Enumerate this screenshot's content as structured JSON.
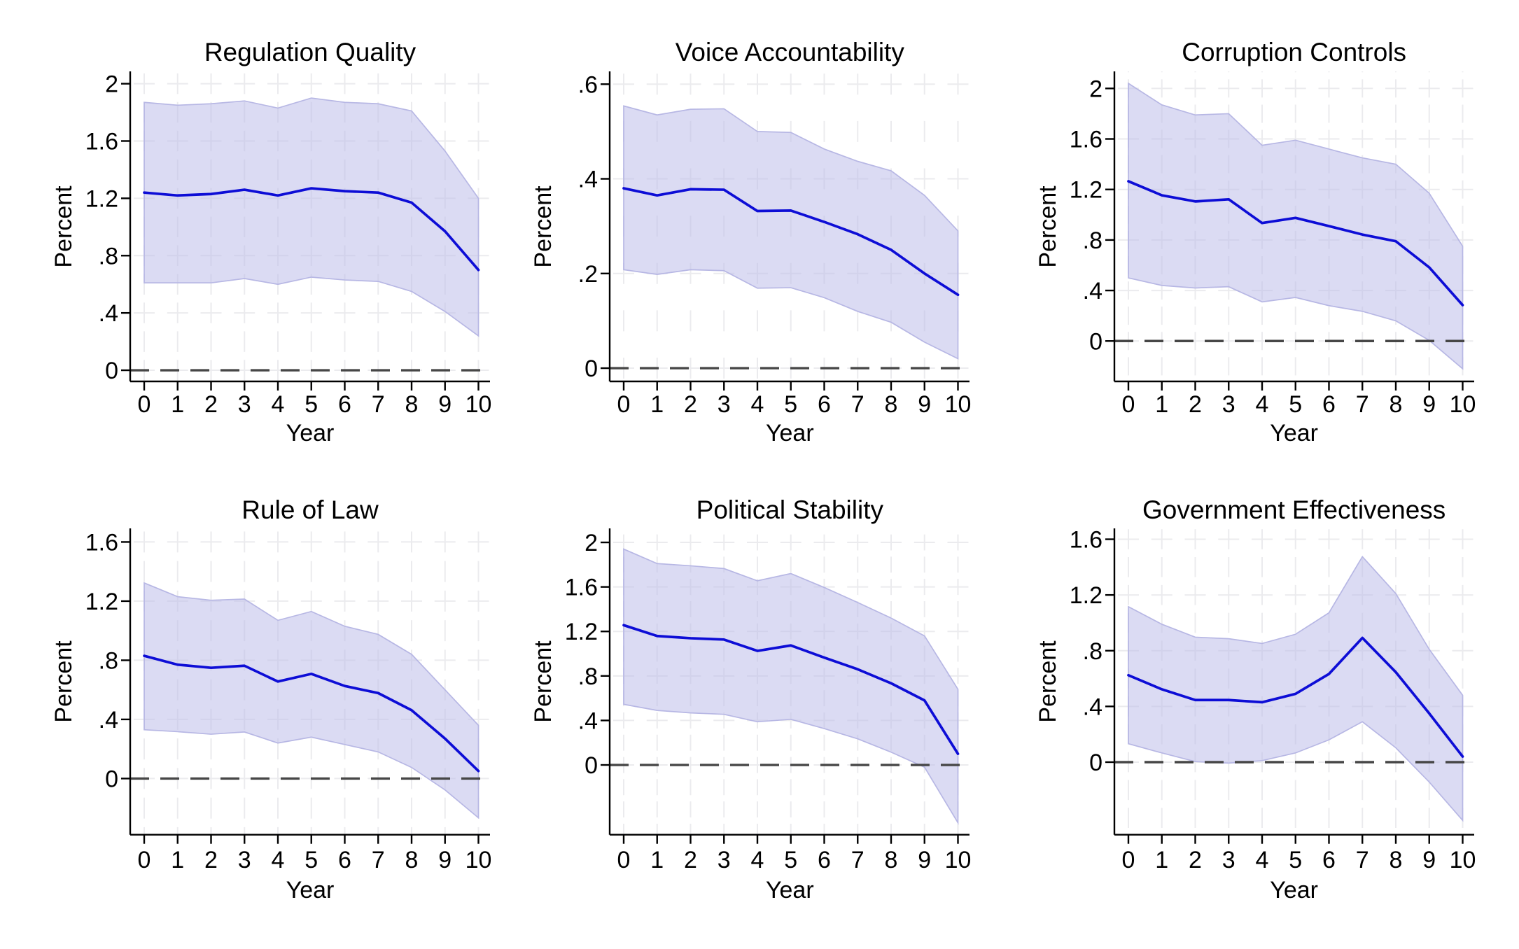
{
  "figure": {
    "background": "#ffffff",
    "layout": "2 rows x 3 columns of line charts with confidence bands"
  },
  "style": {
    "line_color": "#0d0dd6",
    "band_fill": "#bdbdea",
    "band_fill_opacity": 0.55,
    "band_edge": "#b7b7e4",
    "grid_color": "#ebebee",
    "zero_line_color": "#474747",
    "axis_color": "#000000"
  },
  "chart_data": [
    {
      "type": "line",
      "title": "Regulation Quality",
      "xlabel": "Year",
      "ylabel": "Percent",
      "x": [
        0,
        1,
        2,
        3,
        4,
        5,
        6,
        7,
        8,
        9,
        10
      ],
      "xtick_labels": [
        "0",
        "1",
        "2",
        "3",
        "4",
        "5",
        "6",
        "7",
        "8",
        "9",
        "10"
      ],
      "series": [
        {
          "name": "response",
          "values": [
            1.24,
            1.22,
            1.23,
            1.26,
            1.22,
            1.27,
            1.25,
            1.24,
            1.17,
            0.97,
            0.7
          ]
        },
        {
          "name": "ci_upper",
          "values": [
            1.87,
            1.85,
            1.86,
            1.88,
            1.83,
            1.9,
            1.87,
            1.86,
            1.81,
            1.53,
            1.2
          ]
        },
        {
          "name": "ci_lower",
          "values": [
            0.61,
            0.61,
            0.61,
            0.64,
            0.6,
            0.65,
            0.63,
            0.62,
            0.55,
            0.41,
            0.24
          ]
        }
      ],
      "yticks": [
        0,
        0.4,
        0.8,
        1.2,
        1.6,
        2
      ],
      "ytick_labels": [
        "0",
        ".4",
        ".8",
        "1.2",
        "1.6",
        "2"
      ],
      "ylim": [
        -0.078,
        2.086
      ],
      "zero_line": 0,
      "grid": true,
      "legend": "none"
    },
    {
      "type": "line",
      "title": "Voice Accountability",
      "xlabel": "Year",
      "ylabel": "Percent",
      "x": [
        0,
        1,
        2,
        3,
        4,
        5,
        6,
        7,
        8,
        9,
        10
      ],
      "xtick_labels": [
        "0",
        "1",
        "2",
        "3",
        "4",
        "5",
        "6",
        "7",
        "8",
        "9",
        "10"
      ],
      "series": [
        {
          "name": "response",
          "values": [
            0.38,
            0.365,
            0.378,
            0.377,
            0.332,
            0.333,
            0.309,
            0.283,
            0.25,
            0.2,
            0.155
          ]
        },
        {
          "name": "ci_upper",
          "values": [
            0.554,
            0.535,
            0.547,
            0.548,
            0.5,
            0.498,
            0.463,
            0.437,
            0.417,
            0.365,
            0.29
          ]
        },
        {
          "name": "ci_lower",
          "values": [
            0.208,
            0.198,
            0.208,
            0.206,
            0.169,
            0.17,
            0.149,
            0.12,
            0.097,
            0.055,
            0.02
          ]
        }
      ],
      "yticks": [
        0,
        0.2,
        0.4,
        0.6
      ],
      "ytick_labels": [
        "0",
        ".2",
        ".4",
        ".6"
      ],
      "ylim": [
        -0.028,
        0.627
      ],
      "zero_line": 0,
      "grid": true,
      "legend": "none"
    },
    {
      "type": "line",
      "title": "Corruption Controls",
      "xlabel": "Year",
      "ylabel": "Percent",
      "x": [
        0,
        1,
        2,
        3,
        4,
        5,
        6,
        7,
        8,
        9,
        10
      ],
      "xtick_labels": [
        "0",
        "1",
        "2",
        "3",
        "4",
        "5",
        "6",
        "7",
        "8",
        "9",
        "10"
      ],
      "series": [
        {
          "name": "response",
          "values": [
            1.265,
            1.154,
            1.105,
            1.122,
            0.934,
            0.975,
            0.91,
            0.843,
            0.79,
            0.583,
            0.284
          ]
        },
        {
          "name": "ci_upper",
          "values": [
            2.04,
            1.87,
            1.79,
            1.8,
            1.55,
            1.59,
            1.52,
            1.45,
            1.4,
            1.17,
            0.75
          ]
        },
        {
          "name": "ci_lower",
          "values": [
            0.5,
            0.44,
            0.42,
            0.43,
            0.31,
            0.345,
            0.28,
            0.235,
            0.16,
            0.005,
            -0.22
          ]
        }
      ],
      "yticks": [
        0,
        0.4,
        0.8,
        1.2,
        1.6,
        2
      ],
      "ytick_labels": [
        "0",
        ".4",
        ".8",
        "1.2",
        "1.6",
        "2"
      ],
      "ylim": [
        -0.32,
        2.135
      ],
      "zero_line": 0,
      "grid": true,
      "legend": "none"
    },
    {
      "type": "line",
      "title": "Rule of Law",
      "xlabel": "Year",
      "ylabel": "Percent",
      "x": [
        0,
        1,
        2,
        3,
        4,
        5,
        6,
        7,
        8,
        9,
        10
      ],
      "xtick_labels": [
        "0",
        "1",
        "2",
        "3",
        "4",
        "5",
        "6",
        "7",
        "8",
        "9",
        "10"
      ],
      "series": [
        {
          "name": "response",
          "values": [
            0.83,
            0.77,
            0.749,
            0.763,
            0.656,
            0.708,
            0.626,
            0.578,
            0.462,
            0.27,
            0.051
          ]
        },
        {
          "name": "ci_upper",
          "values": [
            1.323,
            1.23,
            1.206,
            1.214,
            1.07,
            1.13,
            1.03,
            0.975,
            0.84,
            0.6,
            0.36
          ]
        },
        {
          "name": "ci_lower",
          "values": [
            0.33,
            0.317,
            0.3,
            0.315,
            0.24,
            0.28,
            0.23,
            0.18,
            0.075,
            -0.077,
            -0.266
          ]
        }
      ],
      "yticks": [
        0,
        0.4,
        0.8,
        1.2,
        1.6
      ],
      "ytick_labels": [
        "0",
        ".4",
        ".8",
        "1.2",
        "1.6"
      ],
      "ylim": [
        -0.38,
        1.692
      ],
      "zero_line": 0,
      "grid": true,
      "legend": "none"
    },
    {
      "type": "line",
      "title": "Political Stability",
      "xlabel": "Year",
      "ylabel": "Percent",
      "x": [
        0,
        1,
        2,
        3,
        4,
        5,
        6,
        7,
        8,
        9,
        10
      ],
      "xtick_labels": [
        "0",
        "1",
        "2",
        "3",
        "4",
        "5",
        "6",
        "7",
        "8",
        "9",
        "10"
      ],
      "series": [
        {
          "name": "response",
          "values": [
            1.256,
            1.159,
            1.139,
            1.127,
            1.025,
            1.074,
            0.965,
            0.86,
            0.734,
            0.58,
            0.1
          ]
        },
        {
          "name": "ci_upper",
          "values": [
            1.94,
            1.81,
            1.79,
            1.765,
            1.655,
            1.72,
            1.595,
            1.46,
            1.32,
            1.16,
            0.68
          ]
        },
        {
          "name": "ci_lower",
          "values": [
            0.545,
            0.49,
            0.468,
            0.455,
            0.388,
            0.41,
            0.327,
            0.235,
            0.115,
            -0.02,
            -0.52
          ]
        }
      ],
      "yticks": [
        0,
        0.4,
        0.8,
        1.2,
        1.6,
        2
      ],
      "ytick_labels": [
        "0",
        ".4",
        ".8",
        "1.2",
        "1.6",
        "2"
      ],
      "ylim": [
        -0.627,
        2.126
      ],
      "zero_line": 0,
      "grid": true,
      "legend": "none"
    },
    {
      "type": "line",
      "title": "Government Effectiveness",
      "xlabel": "Year",
      "ylabel": "Percent",
      "x": [
        0,
        1,
        2,
        3,
        4,
        5,
        6,
        7,
        8,
        9,
        10
      ],
      "xtick_labels": [
        "0",
        "1",
        "2",
        "3",
        "4",
        "5",
        "6",
        "7",
        "8",
        "9",
        "10"
      ],
      "series": [
        {
          "name": "response",
          "values": [
            0.624,
            0.523,
            0.446,
            0.446,
            0.43,
            0.49,
            0.633,
            0.892,
            0.646,
            0.35,
            0.04
          ]
        },
        {
          "name": "ci_upper",
          "values": [
            1.116,
            0.99,
            0.897,
            0.886,
            0.852,
            0.918,
            1.072,
            1.475,
            1.21,
            0.81,
            0.48
          ]
        },
        {
          "name": "ci_lower",
          "values": [
            0.132,
            0.066,
            0.004,
            -0.007,
            0.011,
            0.066,
            0.16,
            0.29,
            0.103,
            -0.143,
            -0.418
          ]
        }
      ],
      "yticks": [
        0,
        0.4,
        0.8,
        1.2,
        1.6
      ],
      "ytick_labels": [
        "0",
        ".4",
        ".8",
        "1.2",
        "1.6"
      ],
      "ylim": [
        -0.521,
        1.678
      ],
      "zero_line": 0,
      "grid": true,
      "legend": "none"
    }
  ]
}
